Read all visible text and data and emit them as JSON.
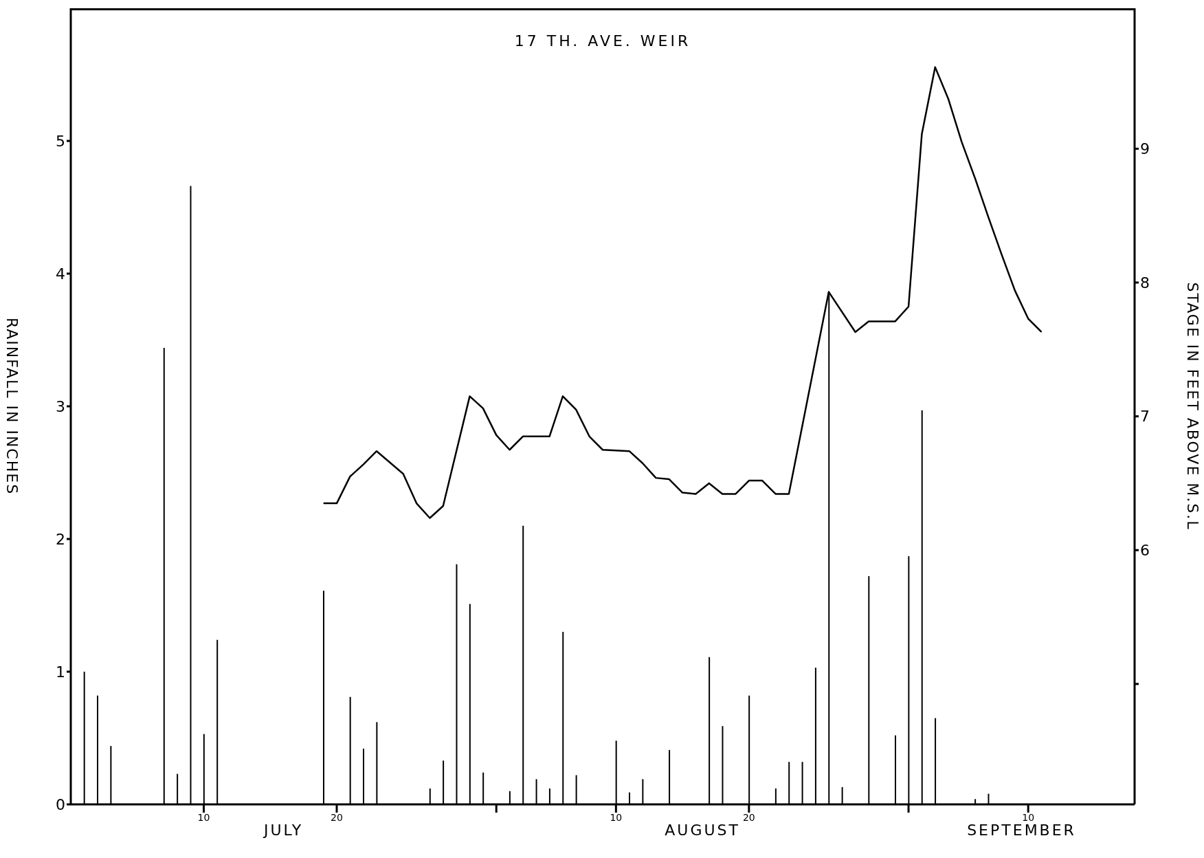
{
  "chart_data": {
    "type": "bar",
    "title": "17 TH. AVE. WEIR",
    "ylabel": "RAINFALL IN INCHES",
    "y2label": "STAGE IN FEET ABOVE M.S.L",
    "annotations": [
      "JULY",
      "AUGUST",
      "SEPTEMBER"
    ],
    "xlim": [
      "--06-30",
      "--09-18"
    ],
    "xticks": [
      {
        "value": "--07-10",
        "label": "10"
      },
      {
        "value": "--07-20",
        "label": "20"
      },
      {
        "value": "--08-01",
        "label": null
      },
      {
        "value": "--08-10",
        "label": "10"
      },
      {
        "value": "--08-20",
        "label": "20"
      },
      {
        "value": "--09-01",
        "label": null
      },
      {
        "value": "--09-10",
        "label": "10"
      }
    ],
    "ylim": [
      0,
      6
    ],
    "yticks": [
      0,
      1,
      2,
      3,
      4,
      5
    ],
    "y2lim": [
      4.1,
      10.05
    ],
    "y2ticks": [
      {
        "value": 5,
        "label": null
      },
      6,
      7,
      8,
      9
    ],
    "marker": "none",
    "series": [
      {
        "color": "#000000",
        "x": [
          "--07-01",
          "--07-02",
          "--07-03",
          "--07-07",
          "--07-08",
          "--07-09",
          "--07-10",
          "--07-11",
          "--07-19",
          "--07-21",
          "--07-22",
          "--07-23",
          "--07-27",
          "--07-28",
          "--07-29",
          "--07-30",
          "--07-31",
          "--08-02",
          "--08-03",
          "--08-04",
          "--08-05",
          "--08-06",
          "--08-07",
          "--08-10",
          "--08-11",
          "--08-12",
          "--08-14",
          "--08-17",
          "--08-18",
          "--08-20",
          "--08-22",
          "--08-23",
          "--08-24",
          "--08-25",
          "--08-26",
          "--08-27",
          "--08-29",
          "--08-31",
          "--09-01",
          "--09-02",
          "--09-03",
          "--09-06",
          "--09-07"
        ],
        "values": [
          1.0,
          0.82,
          0.44,
          3.44,
          0.23,
          4.66,
          0.53,
          1.24,
          1.61,
          0.81,
          0.42,
          0.62,
          0.12,
          0.33,
          1.81,
          1.51,
          0.24,
          0.1,
          2.1,
          0.19,
          0.12,
          1.3,
          0.22,
          0.48,
          0.09,
          0.19,
          0.41,
          1.11,
          0.59,
          0.82,
          0.12,
          0.32,
          0.32,
          1.03,
          3.85,
          0.13,
          1.72,
          0.52,
          1.87,
          2.97,
          0.65,
          0.04,
          0.08
        ]
      },
      {
        "type": "line",
        "axis": "y2",
        "color": "#000000",
        "x": [
          "--07-19",
          "--07-20",
          "--07-21",
          "--07-22",
          "--07-23",
          "--07-25",
          "--07-26",
          "--07-27",
          "--07-28",
          "--07-30",
          "--07-31",
          "--08-01",
          "--08-02",
          "--08-03",
          "--08-05",
          "--08-06",
          "--08-07",
          "--08-08",
          "--08-09",
          "--08-11",
          "--08-12",
          "--08-13",
          "--08-14",
          "--08-15",
          "--08-16",
          "--08-17",
          "--08-18",
          "--08-19",
          "--08-20",
          "--08-21",
          "--08-22",
          "--08-23",
          "--08-26",
          "--08-28",
          "--08-29",
          "--08-31",
          "--09-01",
          "--09-02",
          "--09-03",
          "--09-04",
          "--09-05",
          "--09-06",
          "--09-07",
          "--09-08",
          "--09-09",
          "--09-10",
          "--09-11"
        ],
        "values": [
          6.35,
          6.35,
          6.55,
          6.64,
          6.74,
          6.57,
          6.35,
          6.24,
          6.33,
          7.15,
          7.06,
          6.86,
          6.75,
          6.85,
          6.85,
          7.15,
          7.05,
          6.85,
          6.75,
          6.74,
          6.65,
          6.54,
          6.53,
          6.43,
          6.42,
          6.5,
          6.42,
          6.42,
          6.52,
          6.52,
          6.42,
          6.42,
          7.93,
          7.63,
          7.71,
          7.71,
          7.82,
          9.11,
          9.61,
          9.37,
          9.05,
          8.78,
          8.49,
          8.21,
          7.94,
          7.73,
          7.63
        ]
      }
    ]
  }
}
